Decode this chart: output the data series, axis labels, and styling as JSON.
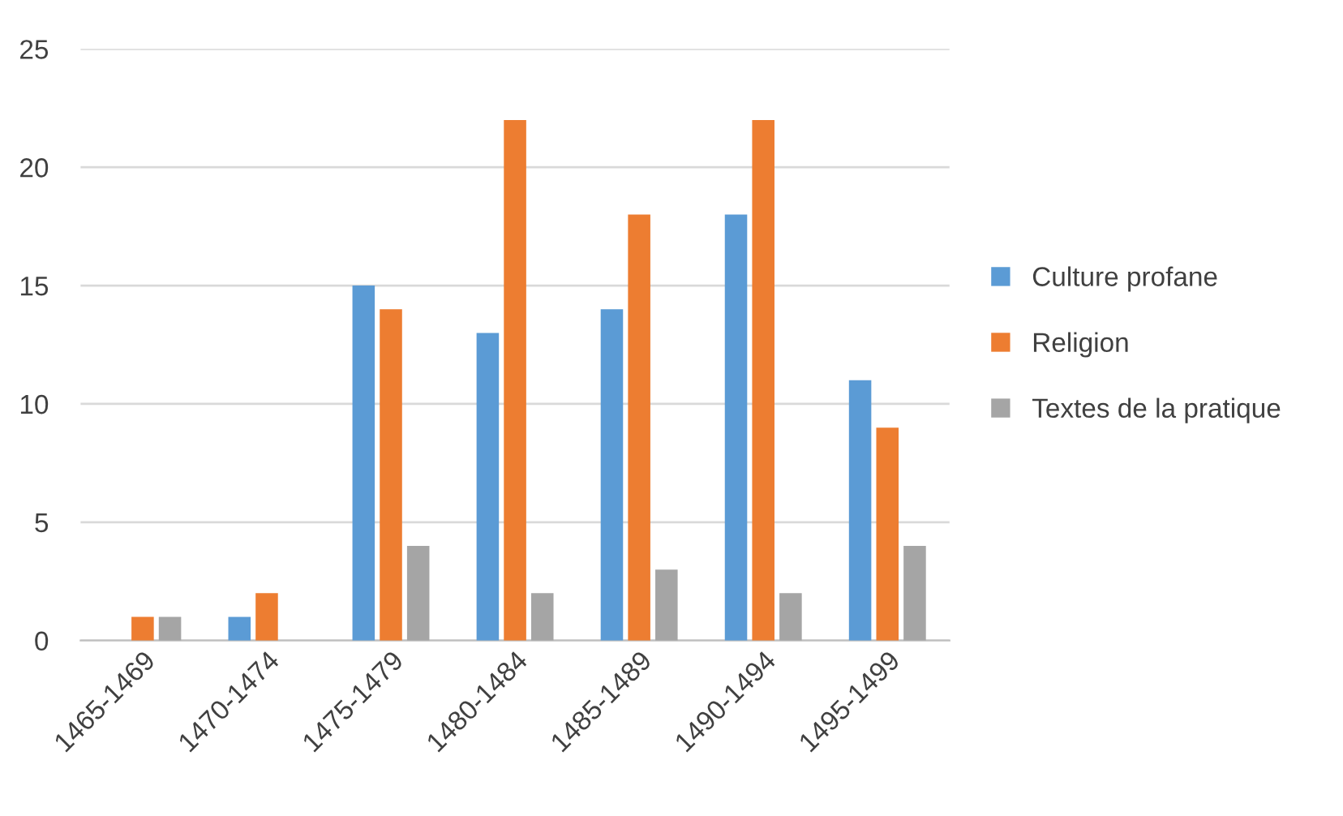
{
  "chart_data": {
    "type": "bar",
    "categories": [
      "1465-1469",
      "1470-1474",
      "1475-1479",
      "1480-1484",
      "1485-1489",
      "1490-1494",
      "1495-1499"
    ],
    "series": [
      {
        "name": "Culture profane",
        "color": "#5b9bd5",
        "values": [
          0,
          1,
          15,
          13,
          14,
          18,
          11
        ]
      },
      {
        "name": "Religion",
        "color": "#ed7d31",
        "values": [
          1,
          2,
          14,
          22,
          18,
          22,
          9
        ]
      },
      {
        "name": "Textes de la pratique",
        "color": "#a5a5a5",
        "values": [
          1,
          0,
          4,
          2,
          3,
          2,
          4
        ]
      }
    ],
    "ylim": [
      0,
      25
    ],
    "yticks": [
      0,
      5,
      10,
      15,
      20,
      25
    ],
    "grid": "y",
    "legend": "right"
  }
}
